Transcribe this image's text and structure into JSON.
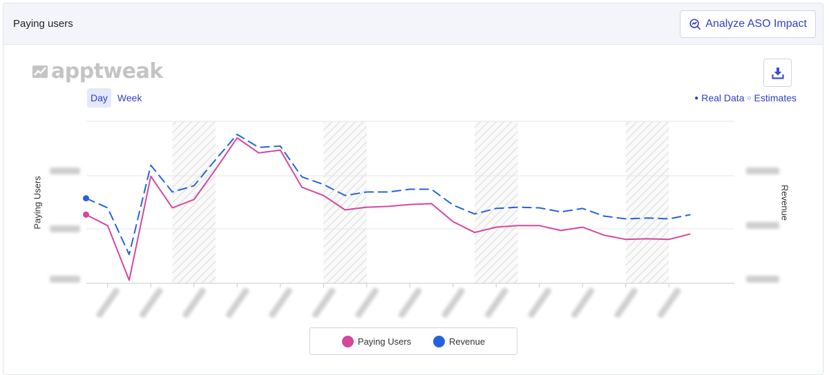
{
  "header": {
    "title": "Paying users",
    "aso_button_label": "Analyze ASO Impact"
  },
  "logo": {
    "text": "apptweak"
  },
  "granularity": {
    "day_label": "Day",
    "week_label": "Week",
    "selected": "Day"
  },
  "data_legend": {
    "real_label": "Real Data",
    "estimates_label": "Estimates"
  },
  "colors": {
    "paying_users": "#d4479b",
    "revenue": "#2463db",
    "accent": "#2f3fc0"
  },
  "chart_data": {
    "type": "line",
    "title": "",
    "left_axis_label": "Paying Users",
    "right_axis_label": "Revenue",
    "x_index": [
      0,
      1,
      2,
      3,
      4,
      5,
      6,
      7,
      8,
      9,
      10,
      11,
      12,
      13,
      14,
      15,
      16,
      17,
      18,
      19,
      20,
      21,
      22,
      23,
      24,
      25,
      26,
      27,
      28
    ],
    "y_range": [
      0,
      100
    ],
    "grid": true,
    "weekend_spans": [
      [
        4,
        6
      ],
      [
        11,
        13
      ],
      [
        18,
        20
      ],
      [
        25,
        27
      ]
    ],
    "series": [
      {
        "name": "Paying Users",
        "axis": "left",
        "style": "solid",
        "color": "#d4479b",
        "values": [
          42.4,
          35.6,
          1.9,
          66.1,
          46.6,
          51.7,
          70.3,
          89.8,
          80.5,
          82.2,
          59.3,
          54.2,
          45.3,
          47.0,
          47.5,
          48.7,
          49.2,
          38.1,
          31.4,
          34.7,
          35.6,
          35.6,
          32.6,
          34.7,
          29.7,
          27.1,
          27.5,
          27.1,
          30.5
        ]
      },
      {
        "name": "Revenue",
        "axis": "right",
        "style": "dashed",
        "color": "#2463db",
        "values": [
          52.5,
          46.6,
          17.8,
          72.9,
          56.4,
          60.2,
          76.3,
          91.9,
          83.9,
          84.7,
          65.7,
          61.0,
          54.2,
          56.4,
          56.4,
          58.1,
          58.1,
          48.3,
          42.8,
          46.2,
          47.0,
          46.6,
          44.1,
          46.2,
          41.5,
          39.8,
          40.3,
          39.8,
          42.4
        ]
      }
    ],
    "legend_placement": "bottom"
  }
}
